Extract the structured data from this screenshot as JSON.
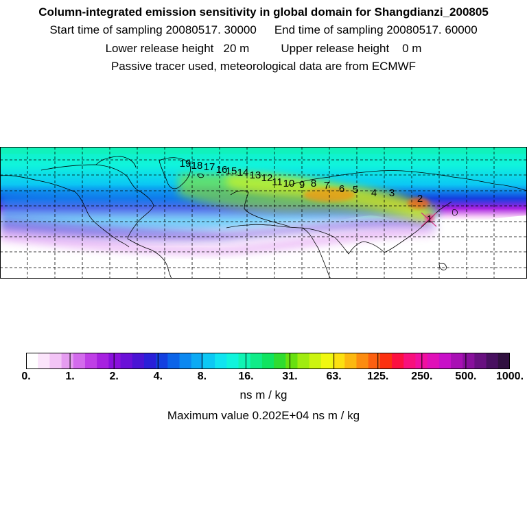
{
  "header": {
    "title": "Column-integrated emission sensitivity in global domain for Shangdianzi_200805",
    "start_label": "Start time of sampling 20080517. 30000",
    "end_label": "End time of sampling 20080517. 60000",
    "lower_label": "Lower release height   20 m",
    "upper_label": "Upper release height    0 m",
    "tracer_label": "Passive tracer used, meteorological data are from ECMWF"
  },
  "map": {
    "trajectory_labels": [
      "1",
      "2",
      "3",
      "4",
      "5",
      "6",
      "7",
      "8",
      "9",
      "10",
      "11",
      "12",
      "13",
      "14",
      "15",
      "16",
      "17",
      "18",
      "19"
    ],
    "colors": {
      "ocean_background": "#2ec8e8",
      "high": "#ff4500",
      "coast": "#000000",
      "grid": "#000000"
    }
  },
  "colorbar": {
    "tick_labels": [
      "0.",
      "1.",
      "2.",
      "4.",
      "8.",
      "16.",
      "31.",
      "63.",
      "125.",
      "250.",
      "500.",
      "1000."
    ],
    "colors": [
      "#ffffff",
      "#fbe4fb",
      "#f3c4f6",
      "#e59cf0",
      "#d36bec",
      "#bf3fe6",
      "#a721e0",
      "#8a10dc",
      "#6a10d8",
      "#4a14d4",
      "#2a20d8",
      "#1440e0",
      "#0c64e8",
      "#0c88f0",
      "#0caaf4",
      "#0cc8f4",
      "#10e4f0",
      "#10f4dc",
      "#10f4b4",
      "#10ec88",
      "#10e460",
      "#30dc30",
      "#68e010",
      "#a0ec10",
      "#ccf410",
      "#f0f810",
      "#fce010",
      "#fcb810",
      "#fc8c10",
      "#fc6010",
      "#fc3010",
      "#fc1040",
      "#f8107c",
      "#f010a0",
      "#e010b8",
      "#c810c8",
      "#a810b4",
      "#88109c",
      "#681080",
      "#481060",
      "#301040"
    ],
    "unit": "ns m / kg",
    "max_label": "Maximum value  0.202E+04 ns m / kg"
  }
}
